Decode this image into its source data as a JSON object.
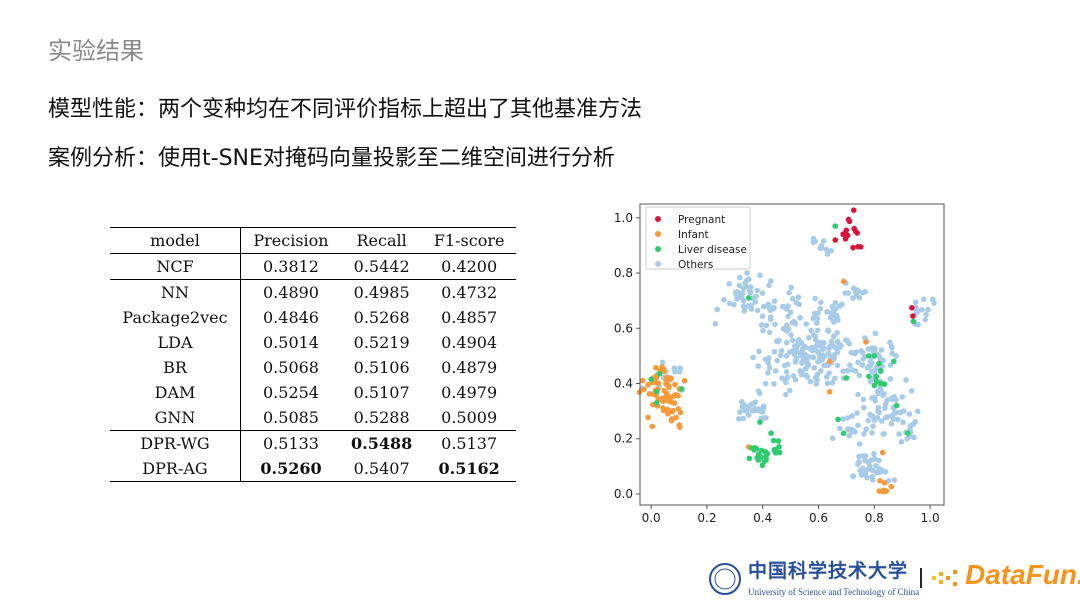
{
  "slide": {
    "title": "实验结果",
    "line1": "模型性能：两个变种均在不同评价指标上超出了其他基准方法",
    "line2": "案例分析：使用t-SNE对掩码向量投影至二维空间进行分析"
  },
  "table": {
    "headers": [
      "model",
      "Precision",
      "Recall",
      "F1-score"
    ],
    "rows": [
      {
        "cells": [
          "NCF",
          "0.3812",
          "0.5442",
          "0.4200"
        ],
        "bold": []
      },
      {
        "cells": [
          "NN",
          "0.4890",
          "0.4985",
          "0.4732"
        ],
        "bold": []
      },
      {
        "cells": [
          "Package2vec",
          "0.4846",
          "0.5268",
          "0.4857"
        ],
        "bold": []
      },
      {
        "cells": [
          "LDA",
          "0.5014",
          "0.5219",
          "0.4904"
        ],
        "bold": []
      },
      {
        "cells": [
          "BR",
          "0.5068",
          "0.5106",
          "0.4879"
        ],
        "bold": []
      },
      {
        "cells": [
          "DAM",
          "0.5254",
          "0.5107",
          "0.4979"
        ],
        "bold": []
      },
      {
        "cells": [
          "GNN",
          "0.5085",
          "0.5288",
          "0.5009"
        ],
        "bold": []
      },
      {
        "cells": [
          "DPR-WG",
          "0.5133",
          "0.5488",
          "0.5137"
        ],
        "bold": [
          2
        ]
      },
      {
        "cells": [
          "DPR-AG",
          "0.5260",
          "0.5407",
          "0.5162"
        ],
        "bold": [
          1,
          3
        ]
      }
    ]
  },
  "chart_data": {
    "type": "scatter",
    "xlim": [
      -0.04,
      1.05
    ],
    "ylim": [
      -0.04,
      1.05
    ],
    "xticks": [
      "0.0",
      "0.2",
      "0.4",
      "0.6",
      "0.8",
      "1.0"
    ],
    "yticks": [
      "0.0",
      "0.2",
      "0.4",
      "0.6",
      "0.8",
      "1.0"
    ],
    "legend_position": "top-left",
    "series": [
      {
        "name": "Pregnant",
        "color": "#dc143c",
        "clusters": [
          [
            0.71,
            0.95,
            0.04,
            14
          ],
          [
            0.94,
            0.655,
            0.02,
            2
          ]
        ]
      },
      {
        "name": "Infant",
        "color": "#f89a3a",
        "clusters": [
          [
            0.04,
            0.4,
            0.035,
            40
          ],
          [
            0.05,
            0.31,
            0.03,
            30
          ],
          [
            0.83,
            0.02,
            0.012,
            8
          ]
        ],
        "points": [
          [
            0.69,
            0.77
          ],
          [
            0.77,
            0.55
          ],
          [
            0.64,
            0.48
          ],
          [
            0.64,
            0.37
          ],
          [
            0.35,
            0.17
          ],
          [
            0.83,
            0.15
          ],
          [
            0.12,
            0.41
          ]
        ]
      },
      {
        "name": "Liver disease",
        "color": "#2ecc71",
        "clusters": [
          [
            0.39,
            0.14,
            0.02,
            16
          ],
          [
            0.44,
            0.17,
            0.015,
            10
          ],
          [
            0.81,
            0.42,
            0.02,
            8
          ]
        ],
        "points": [
          [
            0.35,
            0.71
          ],
          [
            0.66,
            0.97
          ],
          [
            0.7,
            0.94
          ],
          [
            0.94,
            0.625
          ],
          [
            0.0,
            0.415
          ],
          [
            0.02,
            0.37
          ],
          [
            0.02,
            0.33
          ],
          [
            0.03,
            0.435
          ],
          [
            0.11,
            0.38
          ],
          [
            0.39,
            0.26
          ],
          [
            0.43,
            0.22
          ],
          [
            0.7,
            0.42
          ],
          [
            0.78,
            0.5
          ],
          [
            0.8,
            0.5
          ],
          [
            0.87,
            0.48
          ],
          [
            0.88,
            0.32
          ],
          [
            0.67,
            0.27
          ],
          [
            0.69,
            0.22
          ],
          [
            0.92,
            0.22
          ]
        ]
      },
      {
        "name": "Others",
        "color": "#a8cbe8",
        "clusters": [
          [
            0.33,
            0.72,
            0.04,
            40
          ],
          [
            0.46,
            0.65,
            0.04,
            30
          ],
          [
            0.63,
            0.66,
            0.03,
            25
          ],
          [
            0.52,
            0.5,
            0.06,
            90
          ],
          [
            0.64,
            0.5,
            0.05,
            70
          ],
          [
            0.36,
            0.3,
            0.03,
            30
          ],
          [
            0.72,
            0.73,
            0.02,
            12
          ],
          [
            0.97,
            0.66,
            0.025,
            15
          ],
          [
            0.84,
            0.32,
            0.05,
            60
          ],
          [
            0.8,
            0.48,
            0.04,
            40
          ],
          [
            0.79,
            0.09,
            0.03,
            40
          ],
          [
            0.06,
            0.43,
            0.04,
            15
          ],
          [
            0.62,
            0.9,
            0.02,
            10
          ],
          [
            0.92,
            0.22,
            0.02,
            10
          ],
          [
            0.72,
            0.24,
            0.03,
            15
          ]
        ]
      }
    ]
  },
  "footer": {
    "ustc_cn": "中国科学技术大学",
    "ustc_en": "University of Science and Technology of China",
    "datafun": "DataFun."
  }
}
